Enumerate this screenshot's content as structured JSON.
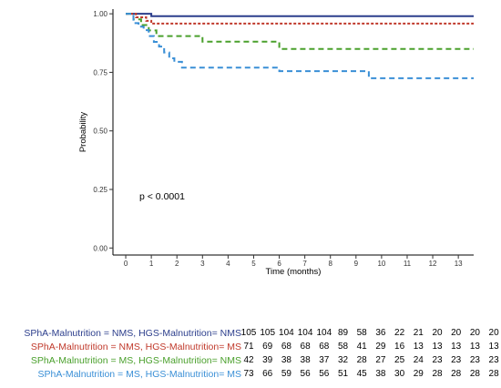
{
  "chart_data": {
    "type": "line",
    "subtype": "kaplan-meier step",
    "title": "",
    "xlabel": "Time (months)",
    "ylabel": "Probability",
    "xlim": [
      -0.5,
      13.6
    ],
    "ylim": [
      -0.03,
      1.02
    ],
    "xticks": [
      "0",
      "1",
      "2",
      "3",
      "4",
      "5",
      "6",
      "7",
      "8",
      "9",
      "10",
      "11",
      "12",
      "13"
    ],
    "yticks": [
      "0.00",
      "0.25",
      "0.50",
      "0.75",
      "1.00"
    ],
    "grid": false,
    "annotation": "p < 0.0001",
    "series": [
      {
        "name": "SPhA-Malnutrition = NMS, HGS-Malnutrition= NMS",
        "color": "#2c3e8c",
        "dash": "solid",
        "steps": [
          [
            0,
            1.0
          ],
          [
            1.0,
            0.99
          ],
          [
            13.6,
            0.99
          ]
        ]
      },
      {
        "name": "SPhA-Malnutrition = NMS, HGS-Malnutrition= MS",
        "color": "#c0392b",
        "dash": "dotted",
        "steps": [
          [
            0,
            1.0
          ],
          [
            0.4,
            0.985
          ],
          [
            0.8,
            0.97
          ],
          [
            1.0,
            0.958
          ],
          [
            13.6,
            0.958
          ]
        ]
      },
      {
        "name": "SPhA-Malnutrition = MS, HGS-Malnutrition= NMS",
        "color": "#4aa02c",
        "dash": "dashed",
        "steps": [
          [
            0,
            1.0
          ],
          [
            0.3,
            0.976
          ],
          [
            0.6,
            0.952
          ],
          [
            0.9,
            0.929
          ],
          [
            1.2,
            0.905
          ],
          [
            2.0,
            0.905
          ],
          [
            3.0,
            0.881
          ],
          [
            6.0,
            0.85
          ],
          [
            13.6,
            0.85
          ]
        ]
      },
      {
        "name": "SPhA-Malnutrition = MS, HGS-Malnutrition= MS",
        "color": "#3a8fd6",
        "dash": "dashed",
        "steps": [
          [
            0,
            1.0
          ],
          [
            0.3,
            0.96
          ],
          [
            0.5,
            0.945
          ],
          [
            0.7,
            0.93
          ],
          [
            0.9,
            0.905
          ],
          [
            1.1,
            0.88
          ],
          [
            1.3,
            0.86
          ],
          [
            1.5,
            0.835
          ],
          [
            1.7,
            0.81
          ],
          [
            1.9,
            0.795
          ],
          [
            2.2,
            0.77
          ],
          [
            3.0,
            0.77
          ],
          [
            6.0,
            0.755
          ],
          [
            9.5,
            0.725
          ],
          [
            13.6,
            0.725
          ]
        ]
      }
    ],
    "risk_table": {
      "times": [
        "0",
        "1",
        "2",
        "3",
        "4",
        "5",
        "6",
        "7",
        "8",
        "9",
        "10",
        "11",
        "12",
        "13"
      ],
      "rows": [
        {
          "label": "SPhA-Malnutrition = NMS, HGS-Malnutrition= NMS",
          "color": "#2c3e8c",
          "counts": [
            "105",
            "105",
            "104",
            "104",
            "104",
            "89",
            "58",
            "36",
            "22",
            "21",
            "20",
            "20",
            "20",
            "20"
          ]
        },
        {
          "label": "SPhA-Malnutrition = NMS, HGS-Malnutrition= MS",
          "color": "#c0392b",
          "counts": [
            "71",
            "69",
            "68",
            "68",
            "68",
            "58",
            "41",
            "29",
            "16",
            "13",
            "13",
            "13",
            "13",
            "13"
          ]
        },
        {
          "label": "SPhA-Malnutrition = MS, HGS-Malnutrition= NMS",
          "color": "#4aa02c",
          "counts": [
            "42",
            "39",
            "38",
            "38",
            "37",
            "32",
            "28",
            "27",
            "25",
            "24",
            "23",
            "23",
            "23",
            "23"
          ]
        },
        {
          "label": "SPhA-Malnutrition = MS, HGS-Malnutrition= MS",
          "color": "#3a8fd6",
          "counts": [
            "73",
            "66",
            "59",
            "56",
            "56",
            "51",
            "45",
            "38",
            "30",
            "29",
            "28",
            "28",
            "28",
            "28"
          ]
        }
      ]
    }
  }
}
